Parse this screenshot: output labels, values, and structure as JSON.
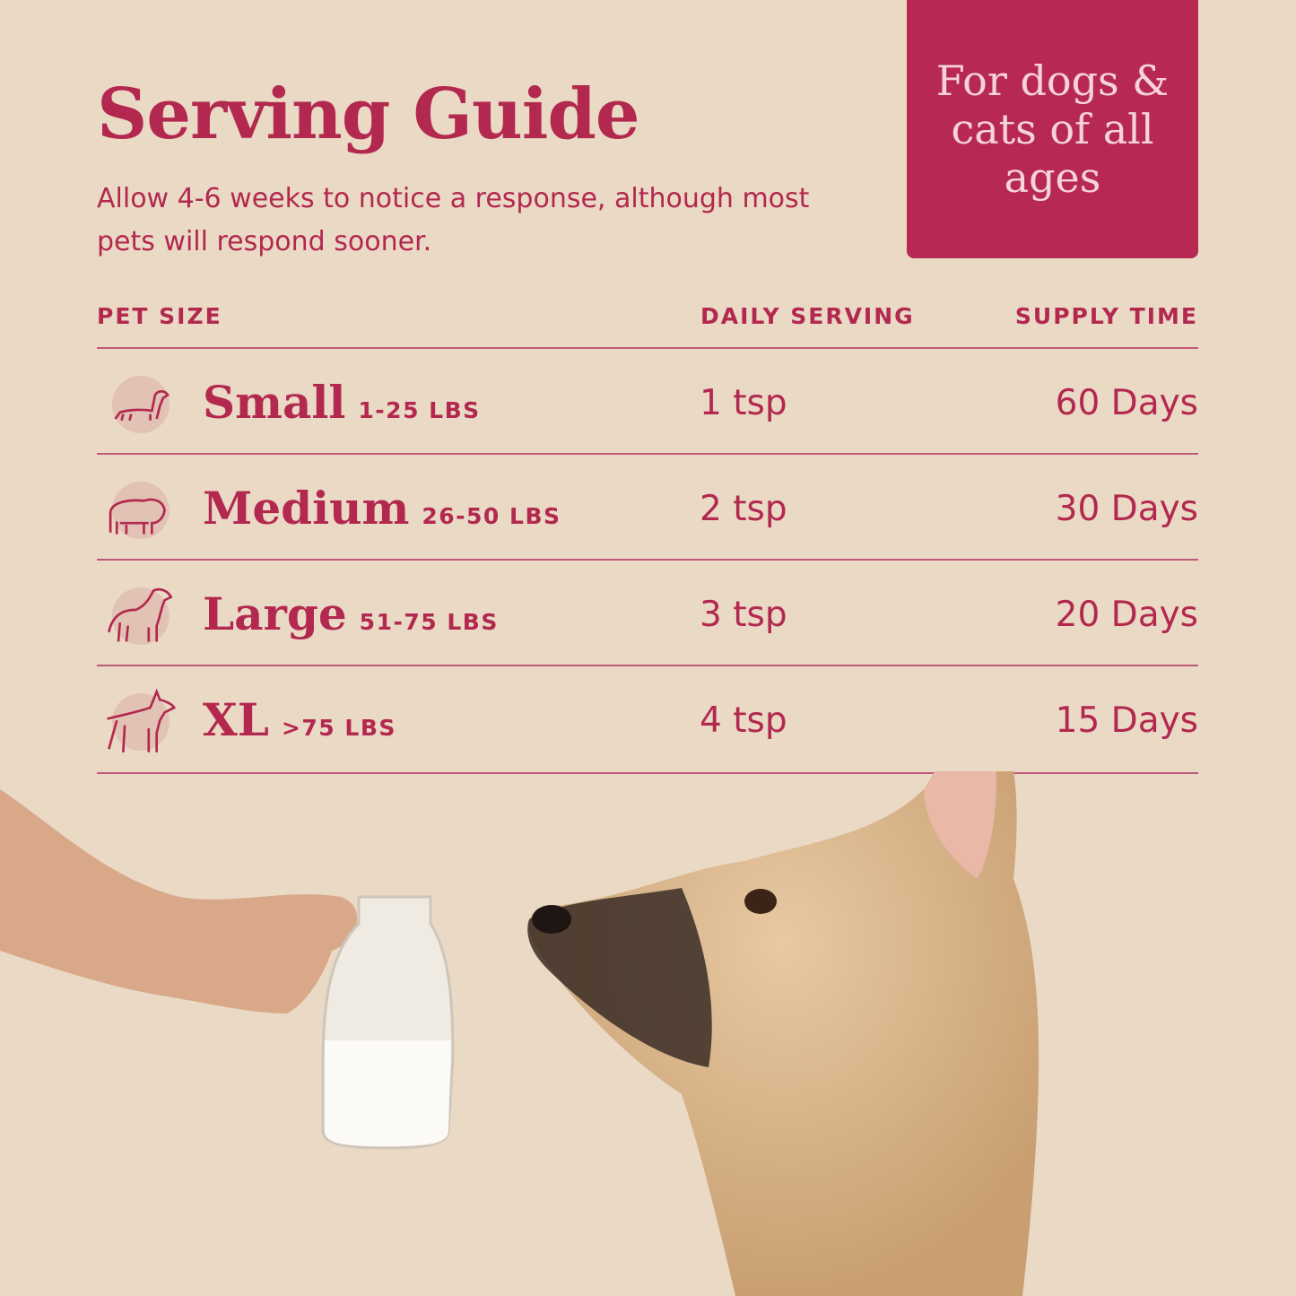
{
  "title": "Serving Guide",
  "subtitle": "Allow 4-6 weeks to notice a response, although most pets will respond sooner.",
  "badge": "For dogs & cats of all ages",
  "colors": {
    "background": "#ead9c5",
    "accent": "#b3284f",
    "badge": "#b72953",
    "badge_text": "#f6d3dc"
  },
  "table": {
    "headers": [
      "PET SIZE",
      "DAILY SERVING",
      "SUPPLY TIME"
    ],
    "rows": [
      {
        "icon": "dachshund-icon",
        "size": "Small",
        "weight": "1-25 LBS",
        "serving": "1 tsp",
        "supply": "60 Days"
      },
      {
        "icon": "bulldog-icon",
        "size": "Medium",
        "weight": "26-50 LBS",
        "serving": "2 tsp",
        "supply": "30 Days"
      },
      {
        "icon": "retriever-icon",
        "size": "Large",
        "weight": "51-75 LBS",
        "serving": "3 tsp",
        "supply": "20 Days"
      },
      {
        "icon": "doberman-icon",
        "size": "XL",
        "weight": ">75 LBS",
        "serving": "4 tsp",
        "supply": "15 Days"
      }
    ]
  }
}
